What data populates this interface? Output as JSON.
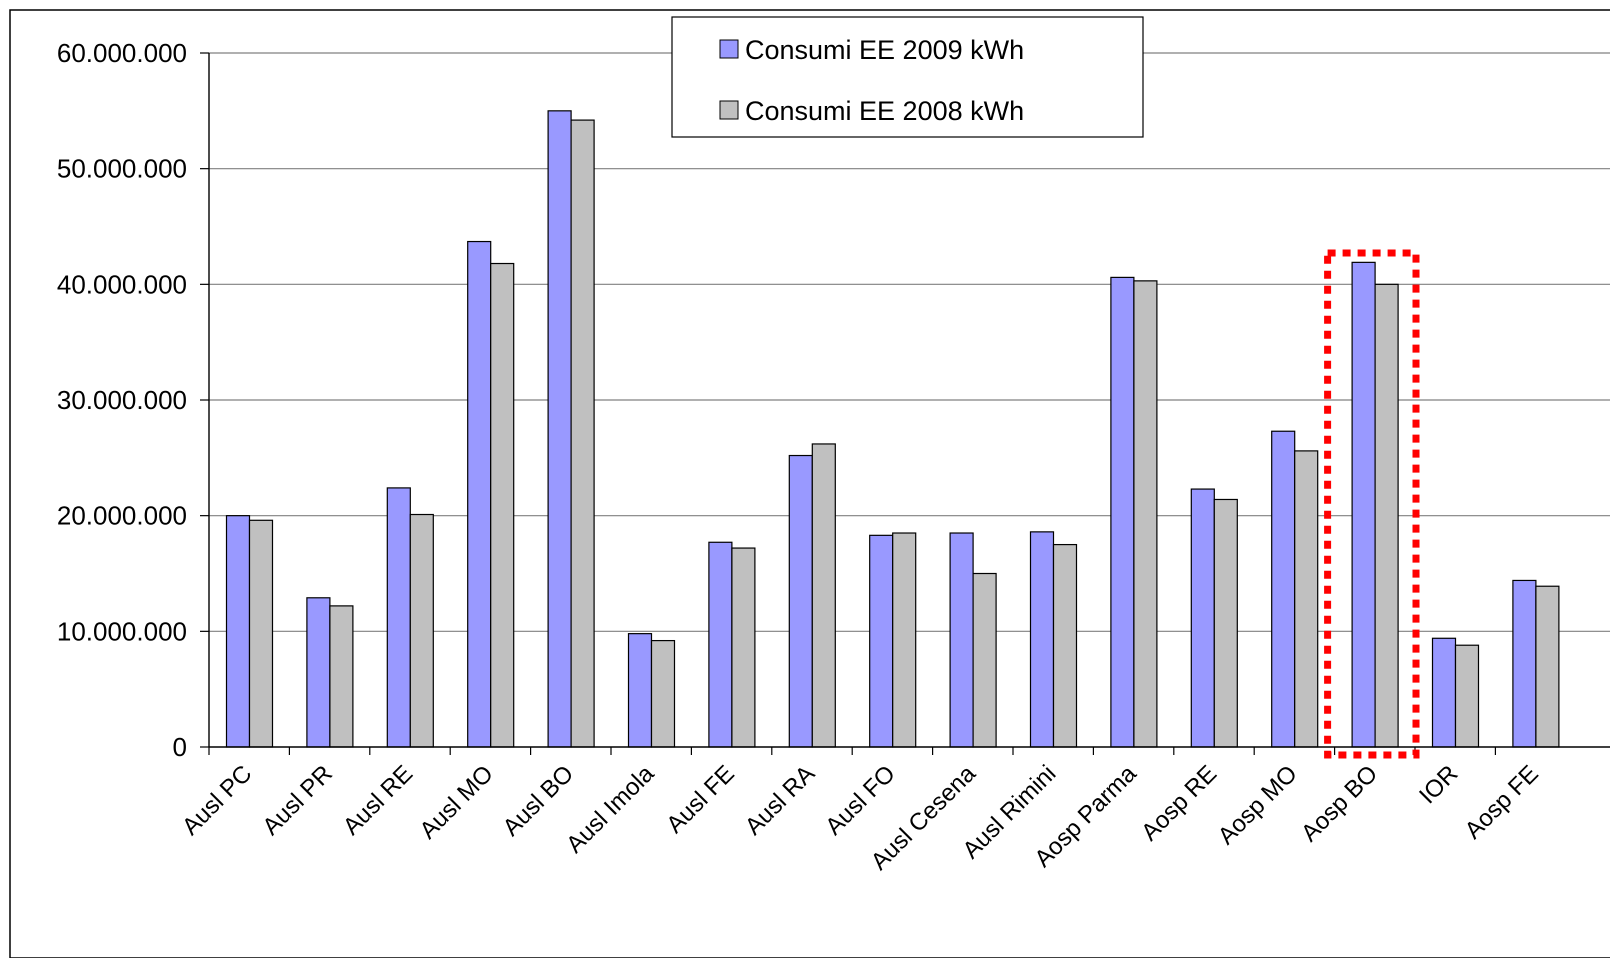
{
  "chart_data": {
    "type": "bar",
    "title": "",
    "xlabel": "",
    "ylabel": "",
    "ylim": [
      0,
      60000000
    ],
    "y_ticks": [
      0,
      10000000,
      20000000,
      30000000,
      40000000,
      50000000,
      60000000
    ],
    "y_tick_labels": [
      "0",
      "10.000.000",
      "20.000.000",
      "30.000.000",
      "40.000.000",
      "50.000.000",
      "60.000.000"
    ],
    "grid": true,
    "legend_position": "top-center",
    "categories": [
      "Ausl PC",
      "Ausl PR",
      "Ausl RE",
      "Ausl MO",
      "Ausl BO",
      "Ausl Imola",
      "Ausl FE",
      "Ausl RA",
      "Ausl FO",
      "Ausl Cesena",
      "Ausl Rimini",
      "Aosp Parma",
      "Aosp RE",
      "Aosp MO",
      "Aosp BO",
      "IOR",
      "Aosp FE"
    ],
    "series": [
      {
        "name": "Consumi EE 2009 kWh",
        "color": "#9999ff",
        "values": [
          20000000,
          12900000,
          22400000,
          43700000,
          55000000,
          9800000,
          17700000,
          25200000,
          18300000,
          18500000,
          18600000,
          40600000,
          22300000,
          27300000,
          41900000,
          9400000,
          14400000
        ]
      },
      {
        "name": "Consumi EE 2008 kWh",
        "color": "#c0c0c0",
        "values": [
          19600000,
          12200000,
          20100000,
          41800000,
          54200000,
          9200000,
          17200000,
          26200000,
          18500000,
          15000000,
          17500000,
          40300000,
          21400000,
          25600000,
          40000000,
          8800000,
          13900000
        ]
      }
    ],
    "highlight": {
      "category": "Aosp BO",
      "style": "dotted-box",
      "color": "#ff0000"
    }
  }
}
